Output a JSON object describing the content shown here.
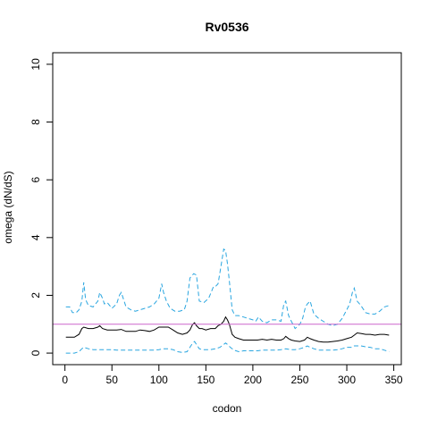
{
  "chart_data": {
    "type": "line",
    "title": "Rv0536",
    "xlabel": "codon",
    "ylabel": "omega (dN/dS)",
    "xlim": [
      -13,
      358
    ],
    "ylim": [
      -0.4,
      10.4
    ],
    "xticks": [
      0,
      50,
      100,
      150,
      200,
      250,
      300,
      350
    ],
    "yticks": [
      0,
      2,
      4,
      6,
      8,
      10
    ],
    "reference_line": {
      "y": 1,
      "color": "#cc66cc"
    },
    "colors": {
      "estimate": "#000000",
      "bounds": "#2aa6e0"
    },
    "grid": false,
    "legend": "none",
    "series": [
      {
        "role": "upper",
        "style": "dashed",
        "x": [
          1,
          5,
          8,
          12,
          15,
          18,
          20,
          22,
          25,
          30,
          35,
          37,
          40,
          42,
          45,
          50,
          55,
          58,
          60,
          65,
          70,
          75,
          80,
          85,
          90,
          95,
          100,
          103,
          105,
          108,
          112,
          117,
          122,
          127,
          130,
          133,
          137,
          140,
          143,
          148,
          153,
          158,
          160,
          163,
          166,
          169,
          171,
          173,
          175,
          178,
          181,
          185,
          190,
          195,
          200,
          203,
          206,
          210,
          215,
          220,
          225,
          230,
          233,
          235,
          238,
          241,
          245,
          250,
          253,
          256,
          258,
          261,
          265,
          270,
          275,
          280,
          285,
          290,
          295,
          300,
          303,
          306,
          308,
          311,
          315,
          320,
          325,
          330,
          335,
          340,
          345
        ],
        "y": [
          1.6,
          1.6,
          1.4,
          1.4,
          1.5,
          1.8,
          2.45,
          1.85,
          1.65,
          1.6,
          1.8,
          2.1,
          1.9,
          1.7,
          1.75,
          1.55,
          1.7,
          2.0,
          2.1,
          1.6,
          1.5,
          1.45,
          1.5,
          1.55,
          1.6,
          1.7,
          1.9,
          2.4,
          2.1,
          1.8,
          1.55,
          1.45,
          1.45,
          1.5,
          1.8,
          2.6,
          2.75,
          2.7,
          1.8,
          1.75,
          1.9,
          2.3,
          2.3,
          2.4,
          3.0,
          3.6,
          3.55,
          3.1,
          2.5,
          1.5,
          1.3,
          1.3,
          1.25,
          1.2,
          1.15,
          1.1,
          1.25,
          1.1,
          1.05,
          1.15,
          1.15,
          1.1,
          1.7,
          1.8,
          1.3,
          1.1,
          0.85,
          1.0,
          1.2,
          1.6,
          1.7,
          1.8,
          1.35,
          1.2,
          1.1,
          1.0,
          0.95,
          1.0,
          1.2,
          1.5,
          1.7,
          2.1,
          2.25,
          1.8,
          1.65,
          1.4,
          1.35,
          1.35,
          1.45,
          1.6,
          1.65
        ]
      },
      {
        "role": "estimate",
        "style": "solid",
        "x": [
          1,
          5,
          10,
          15,
          18,
          20,
          25,
          30,
          35,
          37,
          40,
          45,
          50,
          55,
          60,
          65,
          70,
          75,
          80,
          85,
          90,
          95,
          100,
          105,
          110,
          115,
          120,
          125,
          130,
          133,
          136,
          138,
          140,
          143,
          146,
          150,
          155,
          160,
          163,
          166,
          169,
          171,
          173,
          175,
          178,
          181,
          185,
          190,
          195,
          200,
          205,
          210,
          215,
          220,
          225,
          230,
          233,
          235,
          238,
          241,
          245,
          250,
          255,
          258,
          261,
          265,
          270,
          275,
          280,
          285,
          290,
          295,
          300,
          305,
          308,
          311,
          315,
          320,
          325,
          330,
          335,
          340,
          345
        ],
        "y": [
          0.55,
          0.55,
          0.55,
          0.65,
          0.85,
          0.9,
          0.85,
          0.85,
          0.9,
          0.95,
          0.85,
          0.8,
          0.8,
          0.8,
          0.82,
          0.75,
          0.75,
          0.75,
          0.8,
          0.78,
          0.75,
          0.8,
          0.9,
          0.9,
          0.9,
          0.8,
          0.7,
          0.65,
          0.7,
          0.8,
          1.0,
          1.05,
          0.95,
          0.85,
          0.85,
          0.8,
          0.85,
          0.85,
          0.95,
          1.0,
          1.1,
          1.25,
          1.15,
          1.0,
          0.65,
          0.55,
          0.5,
          0.45,
          0.45,
          0.45,
          0.45,
          0.48,
          0.45,
          0.48,
          0.45,
          0.45,
          0.5,
          0.58,
          0.5,
          0.45,
          0.42,
          0.4,
          0.45,
          0.55,
          0.5,
          0.45,
          0.4,
          0.38,
          0.38,
          0.4,
          0.42,
          0.45,
          0.5,
          0.55,
          0.62,
          0.7,
          0.68,
          0.65,
          0.65,
          0.62,
          0.65,
          0.65,
          0.62
        ]
      },
      {
        "role": "lower",
        "style": "dashed",
        "x": [
          1,
          5,
          10,
          15,
          18,
          20,
          25,
          30,
          35,
          40,
          45,
          50,
          55,
          60,
          65,
          70,
          75,
          80,
          85,
          90,
          95,
          100,
          105,
          110,
          115,
          120,
          125,
          130,
          133,
          136,
          138,
          140,
          143,
          146,
          150,
          155,
          160,
          165,
          169,
          171,
          173,
          176,
          180,
          185,
          190,
          195,
          200,
          205,
          210,
          215,
          220,
          225,
          230,
          235,
          240,
          245,
          250,
          255,
          258,
          261,
          265,
          270,
          275,
          280,
          285,
          290,
          295,
          300,
          305,
          308,
          311,
          315,
          320,
          325,
          330,
          335,
          340,
          345
        ],
        "y": [
          0.0,
          0.0,
          0.0,
          0.05,
          0.15,
          0.2,
          0.15,
          0.12,
          0.12,
          0.12,
          0.12,
          0.12,
          0.1,
          0.1,
          0.1,
          0.1,
          0.1,
          0.1,
          0.1,
          0.1,
          0.1,
          0.12,
          0.15,
          0.15,
          0.12,
          0.05,
          0.02,
          0.05,
          0.2,
          0.35,
          0.4,
          0.3,
          0.15,
          0.12,
          0.12,
          0.12,
          0.15,
          0.2,
          0.3,
          0.35,
          0.3,
          0.2,
          0.1,
          0.05,
          0.08,
          0.08,
          0.08,
          0.08,
          0.1,
          0.1,
          0.1,
          0.1,
          0.12,
          0.15,
          0.12,
          0.12,
          0.15,
          0.2,
          0.25,
          0.2,
          0.15,
          0.1,
          0.1,
          0.1,
          0.1,
          0.12,
          0.15,
          0.2,
          0.2,
          0.25,
          0.25,
          0.25,
          0.22,
          0.2,
          0.15,
          0.15,
          0.1,
          0.05
        ]
      }
    ]
  }
}
